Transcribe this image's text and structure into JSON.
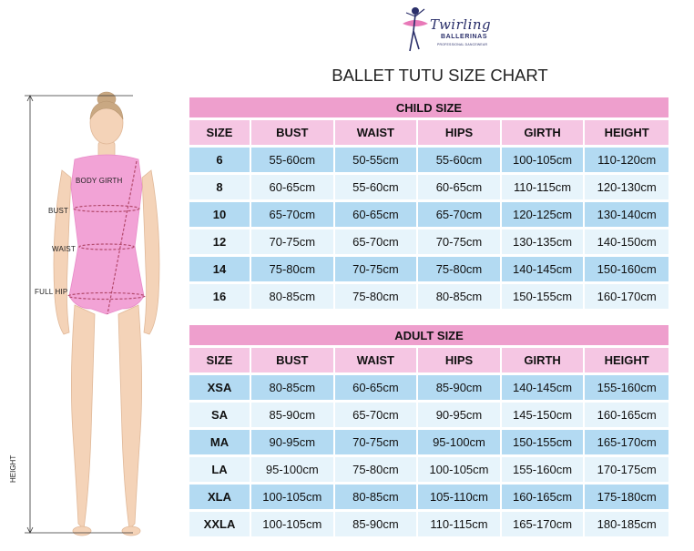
{
  "logo": {
    "script_text": "Twirling",
    "sub_text": "BALLERINAS",
    "tagline": "PROFESSIONAL DANCEWEAR"
  },
  "title": "BALLET TUTU SIZE CHART",
  "figure_labels": {
    "body_girth": "BODY GIRTH",
    "bust": "BUST",
    "waist": "WAIST",
    "full_hip": "FULL HIP",
    "height": "HEIGHT"
  },
  "child": {
    "heading": "CHILD SIZE",
    "columns": [
      "SIZE",
      "BUST",
      "WAIST",
      "HIPS",
      "GIRTH",
      "HEIGHT"
    ],
    "rows": [
      [
        "6",
        "55-60cm",
        "50-55cm",
        "55-60cm",
        "100-105cm",
        "110-120cm"
      ],
      [
        "8",
        "60-65cm",
        "55-60cm",
        "60-65cm",
        "110-115cm",
        "120-130cm"
      ],
      [
        "10",
        "65-70cm",
        "60-65cm",
        "65-70cm",
        "120-125cm",
        "130-140cm"
      ],
      [
        "12",
        "70-75cm",
        "65-70cm",
        "70-75cm",
        "130-135cm",
        "140-150cm"
      ],
      [
        "14",
        "75-80cm",
        "70-75cm",
        "75-80cm",
        "140-145cm",
        "150-160cm"
      ],
      [
        "16",
        "80-85cm",
        "75-80cm",
        "80-85cm",
        "150-155cm",
        "160-170cm"
      ]
    ]
  },
  "adult": {
    "heading": "ADULT SIZE",
    "columns": [
      "SIZE",
      "BUST",
      "WAIST",
      "HIPS",
      "GIRTH",
      "HEIGHT"
    ],
    "rows": [
      [
        "XSA",
        "80-85cm",
        "60-65cm",
        "85-90cm",
        "140-145cm",
        "155-160cm"
      ],
      [
        "SA",
        "85-90cm",
        "65-70cm",
        "90-95cm",
        "145-150cm",
        "160-165cm"
      ],
      [
        "MA",
        "90-95cm",
        "70-75cm",
        "95-100cm",
        "150-155cm",
        "165-170cm"
      ],
      [
        "LA",
        "95-100cm",
        "75-80cm",
        "100-105cm",
        "155-160cm",
        "170-175cm"
      ],
      [
        "XLA",
        "100-105cm",
        "80-85cm",
        "105-110cm",
        "160-165cm",
        "175-180cm"
      ],
      [
        "XXLA",
        "100-105cm",
        "85-90cm",
        "110-115cm",
        "165-170cm",
        "180-185cm"
      ]
    ]
  },
  "colors": {
    "header_pink": "#ee9fcd",
    "column_pink": "#f5c6e3",
    "row_blue": "#b3daf2",
    "row_light": "#e7f4fb",
    "skin": "#f4d3b8",
    "leotard": "#f2a3d6"
  }
}
